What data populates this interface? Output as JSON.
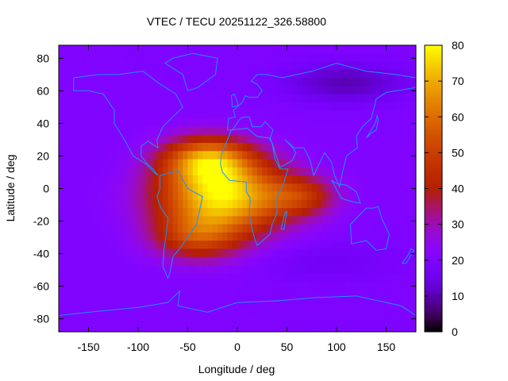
{
  "chart_data": {
    "type": "heatmap",
    "title": "VTEC / TECU 20251122_326.58800",
    "xlabel": "Longitude / deg",
    "ylabel": "Latitude / deg",
    "xlim": [
      -180,
      180
    ],
    "ylim": [
      -88,
      88
    ],
    "x_ticks": [
      -150,
      -100,
      -50,
      0,
      50,
      100,
      150
    ],
    "y_ticks": [
      -80,
      -60,
      -40,
      -20,
      0,
      20,
      40,
      60,
      80
    ],
    "colorbar": {
      "min": 0,
      "max": 80,
      "ticks": [
        0,
        10,
        20,
        30,
        40,
        50,
        60,
        70,
        80
      ],
      "palette": "black-purple-red-orange-yellow"
    },
    "background_vtec": 20,
    "vtec_features": [
      {
        "name": "equatorial-anomaly-south-atlantic",
        "lon": -15,
        "lat": -5,
        "peak_vtec": 57,
        "spread_lon_deg": 65,
        "spread_lat_deg": 22
      },
      {
        "name": "equatorial-anomaly-north-atlantic",
        "lon": -30,
        "lat": 18,
        "peak_vtec": 40,
        "spread_lon_deg": 45,
        "spread_lat_deg": 14
      },
      {
        "name": "southern-crest",
        "lon": -40,
        "lat": -30,
        "peak_vtec": 25,
        "spread_lon_deg": 45,
        "spread_lat_deg": 14
      },
      {
        "name": "indian-ocean-tail",
        "lon": 65,
        "lat": -5,
        "peak_vtec": 20,
        "spread_lon_deg": 35,
        "spread_lat_deg": 12
      },
      {
        "name": "arctic-depletion",
        "lon": 110,
        "lat": 65,
        "peak_vtec": -10,
        "spread_lon_deg": 60,
        "spread_lat_deg": 12
      },
      {
        "name": "south-pacific-depletion",
        "lon": 90,
        "lat": -45,
        "peak_vtec": -4,
        "spread_lon_deg": 70,
        "spread_lat_deg": 12
      }
    ],
    "coastline_color": "#1e90ff"
  }
}
